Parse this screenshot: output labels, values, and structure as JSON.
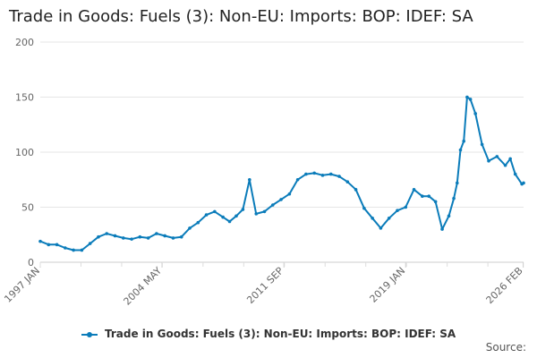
{
  "chart_data": {
    "type": "line",
    "title": "Trade in Goods: Fuels (3): Non-EU: Imports: BOP: IDEF: SA",
    "xlabel": "",
    "ylabel": "",
    "ylim": [
      0,
      200
    ],
    "yticks": [
      0,
      50,
      100,
      150,
      200
    ],
    "xticks": [
      "1997 JAN",
      "2004 MAY",
      "2011 SEP",
      "2019 JAN",
      "2026 FEB"
    ],
    "xlim": [
      "1997-01",
      "2026-02"
    ],
    "grid": true,
    "legend_position": "bottom",
    "series": [
      {
        "name": "Trade in Goods: Fuels (3): Non-EU: Imports: BOP: IDEF: SA",
        "color": "#0b7cba",
        "x": [
          1997.0,
          1997.5,
          1998.0,
          1998.5,
          1999.0,
          1999.5,
          2000.0,
          2000.5,
          2001.0,
          2001.5,
          2002.0,
          2002.5,
          2003.0,
          2003.5,
          2004.0,
          2004.5,
          2005.0,
          2005.5,
          2006.0,
          2006.5,
          2007.0,
          2007.5,
          2008.0,
          2008.4,
          2008.8,
          2009.2,
          2009.6,
          2010.0,
          2010.5,
          2011.0,
          2011.5,
          2012.0,
          2012.5,
          2013.0,
          2013.5,
          2014.0,
          2014.5,
          2015.0,
          2015.5,
          2016.0,
          2016.5,
          2017.0,
          2017.5,
          2018.0,
          2018.5,
          2019.0,
          2019.5,
          2020.0,
          2020.4,
          2020.8,
          2021.2,
          2021.6,
          2021.9,
          2022.1,
          2022.3,
          2022.5,
          2022.7,
          2022.9,
          2023.2,
          2023.6,
          2024.0,
          2024.5,
          2025.0,
          2025.3,
          2025.6,
          2026.0,
          2026.1
        ],
        "values": [
          19,
          16,
          16,
          13,
          11,
          11,
          17,
          23,
          26,
          24,
          22,
          21,
          23,
          22,
          26,
          24,
          22,
          23,
          31,
          36,
          43,
          46,
          41,
          37,
          42,
          48,
          75,
          44,
          46,
          52,
          57,
          62,
          75,
          80,
          81,
          79,
          80,
          78,
          73,
          66,
          49,
          40,
          31,
          40,
          47,
          50,
          66,
          60,
          60,
          55,
          30,
          42,
          58,
          72,
          102,
          110,
          150,
          148,
          135,
          107,
          92,
          96,
          88,
          94,
          80,
          71,
          72
        ]
      }
    ]
  },
  "source_label": "Source:"
}
